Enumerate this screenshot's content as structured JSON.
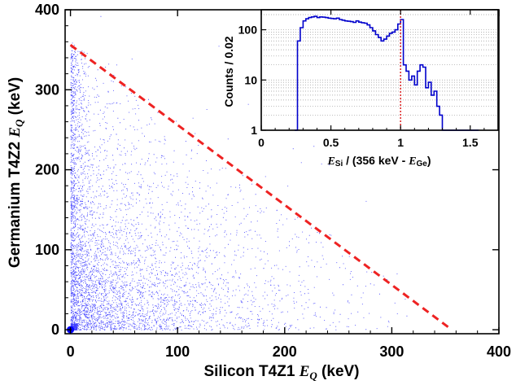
{
  "chart_data": [
    {
      "type": "scatter",
      "title": "",
      "xlabel_parts": [
        "Silicon T4Z1 ",
        "E",
        "Q",
        " (keV)"
      ],
      "ylabel_parts": [
        "Germanium T4Z2 ",
        "E",
        "Q",
        " (keV)"
      ],
      "xlim": [
        -5,
        400
      ],
      "ylim": [
        -5,
        400
      ],
      "x_ticks": [
        0,
        100,
        200,
        300,
        400
      ],
      "y_ticks": [
        0,
        100,
        200,
        300,
        400
      ],
      "x_tick_labels": [
        "0",
        "100",
        "200",
        "300",
        "400"
      ],
      "y_tick_labels": [
        "0",
        "100",
        "200",
        "300",
        "400"
      ],
      "point_color": "#0000ff",
      "density_description_bins": [
        {
          "x": [
            0,
            25
          ],
          "y": [
            0,
            350
          ],
          "weight": 1.0
        },
        {
          "x": [
            25,
            120
          ],
          "y": [
            0,
            320
          ],
          "weight": 0.55
        },
        {
          "x": [
            120,
            220
          ],
          "y": [
            0,
            230
          ],
          "weight": 0.3
        },
        {
          "x": [
            220,
            360
          ],
          "y": [
            0,
            120
          ],
          "weight": 0.08
        }
      ],
      "reference_line": {
        "x": [
          0,
          356
        ],
        "y": [
          356,
          0
        ],
        "color": "#ee2222",
        "style": "dashed"
      },
      "grid": false,
      "legend": "none"
    },
    {
      "type": "line",
      "placement": "inset-top-right",
      "xlabel_parts": [
        "E",
        "Si",
        " / (356 keV - ",
        "E",
        "Ge",
        ")"
      ],
      "ylabel": "Counts / 0.02",
      "xlim": [
        0,
        1.7
      ],
      "ylim": [
        1,
        250
      ],
      "yscale": "log",
      "x_ticks": [
        0,
        0.5,
        1,
        1.5
      ],
      "x_tick_labels": [
        "0",
        "0.5",
        "1",
        "1.5"
      ],
      "y_ticks": [
        1,
        10,
        100
      ],
      "y_tick_labels": [
        "1",
        "10",
        "100"
      ],
      "grid": true,
      "legend": "none",
      "series": [
        {
          "style": "step",
          "color": "#0000cc",
          "bin_width": 0.02,
          "x": [
            0.0,
            0.02,
            0.04,
            0.06,
            0.08,
            0.1,
            0.12,
            0.14,
            0.16,
            0.18,
            0.2,
            0.22,
            0.24,
            0.26,
            0.28,
            0.3,
            0.32,
            0.34,
            0.36,
            0.38,
            0.4,
            0.42,
            0.44,
            0.46,
            0.48,
            0.5,
            0.52,
            0.54,
            0.56,
            0.58,
            0.6,
            0.62,
            0.64,
            0.66,
            0.68,
            0.7,
            0.72,
            0.74,
            0.76,
            0.78,
            0.8,
            0.82,
            0.84,
            0.86,
            0.88,
            0.9,
            0.92,
            0.94,
            0.96,
            0.98,
            1.0,
            1.02,
            1.04,
            1.06,
            1.08,
            1.1,
            1.12,
            1.14,
            1.16,
            1.18,
            1.2,
            1.22,
            1.24,
            1.26,
            1.28,
            1.3,
            1.32,
            1.34,
            1.36,
            1.38,
            1.4,
            1.42,
            1.44,
            1.46,
            1.48,
            1.5,
            1.52,
            1.54,
            1.56,
            1.58,
            1.6,
            1.62,
            1.64,
            1.66,
            1.68
          ],
          "values": [
            0,
            0,
            0,
            0,
            0,
            0,
            0,
            0,
            0,
            0,
            0,
            0,
            1,
            60,
            110,
            150,
            165,
            175,
            180,
            185,
            175,
            180,
            178,
            175,
            170,
            168,
            165,
            170,
            160,
            155,
            150,
            148,
            145,
            140,
            150,
            142,
            138,
            135,
            125,
            110,
            95,
            80,
            70,
            60,
            65,
            75,
            85,
            90,
            100,
            130,
            160,
            20,
            15,
            10,
            12,
            8,
            15,
            20,
            18,
            7,
            9,
            5,
            6,
            3,
            2,
            1,
            1,
            1,
            1,
            1,
            1,
            1,
            1,
            1,
            1,
            1,
            1,
            1,
            0,
            0,
            0,
            0,
            0,
            0,
            0
          ]
        }
      ],
      "reference_line": {
        "x": 1,
        "color": "#dd2222",
        "style": "dotted"
      }
    }
  ]
}
